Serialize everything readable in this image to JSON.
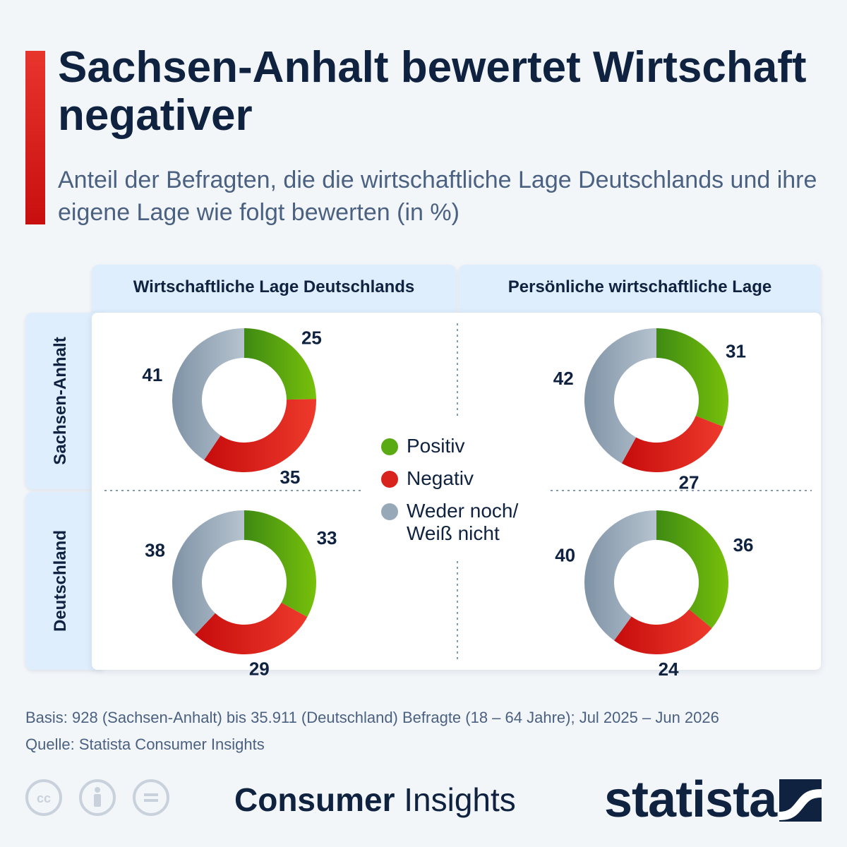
{
  "header": {
    "title": "Sachsen-Anhalt bewertet Wirtschaft negativer",
    "subtitle": "Anteil der Befragten, die die wirtschaftliche Lage Deutschlands und ihre eigene Lage wie folgt bewerten (in %)"
  },
  "columns": [
    "Wirtschaftliche Lage Deutschlands",
    "Persönliche wirtschaftliche Lage"
  ],
  "rows": [
    "Sachsen-Anhalt",
    "Deutschland"
  ],
  "legend": [
    {
      "label": "Positiv",
      "color": "#5aaa14"
    },
    {
      "label": "Negativ",
      "color": "#d9231d"
    },
    {
      "label": "Weder noch/\nWeiß nicht",
      "color": "#97a9b8"
    }
  ],
  "chart_data": [
    {
      "type": "pie",
      "row": "Sachsen-Anhalt",
      "column": "Wirtschaftliche Lage Deutschlands",
      "categories": [
        "Positiv",
        "Negativ",
        "Weder noch/Weiß nicht"
      ],
      "values": [
        25,
        35,
        41
      ]
    },
    {
      "type": "pie",
      "row": "Sachsen-Anhalt",
      "column": "Persönliche wirtschaftliche Lage",
      "categories": [
        "Positiv",
        "Negativ",
        "Weder noch/Weiß nicht"
      ],
      "values": [
        31,
        27,
        42
      ]
    },
    {
      "type": "pie",
      "row": "Deutschland",
      "column": "Wirtschaftliche Lage Deutschlands",
      "categories": [
        "Positiv",
        "Negativ",
        "Weder noch/Weiß nicht"
      ],
      "values": [
        33,
        29,
        38
      ]
    },
    {
      "type": "pie",
      "row": "Deutschland",
      "column": "Persönliche wirtschaftliche Lage",
      "categories": [
        "Positiv",
        "Negativ",
        "Weder noch/Weiß nicht"
      ],
      "values": [
        36,
        24,
        40
      ]
    }
  ],
  "footer": {
    "basis": "Basis: 928 (Sachsen-Anhalt) bis 35.911 (Deutschland) Befragte (18 – 64 Jahre); Jul 2025 – Jun 2026",
    "source": "Quelle: Statista Consumer Insights",
    "brand_bold": "Consumer",
    "brand_light": " Insights",
    "statista": "statista"
  },
  "icons": [
    "cc-icon",
    "attribution-icon",
    "no-derivatives-icon",
    "statista-logo-icon"
  ]
}
